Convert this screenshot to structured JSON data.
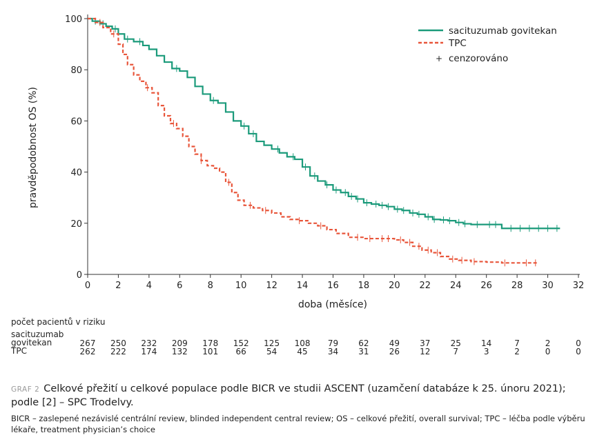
{
  "chart_data": {
    "type": "line",
    "title": "",
    "xlabel": "doba (měsíce)",
    "ylabel": "pravděpodobnost OS (%)",
    "xlim": [
      0,
      32
    ],
    "ylim": [
      0,
      100
    ],
    "xticks": [
      0,
      2,
      4,
      6,
      8,
      10,
      12,
      14,
      16,
      18,
      20,
      22,
      24,
      26,
      28,
      30,
      32
    ],
    "yticks": [
      0,
      20,
      40,
      60,
      80,
      100
    ],
    "grid": false,
    "legend": "top-right",
    "censored_label": "cenzorováno",
    "series": [
      {
        "name": "sacituzumab govitekan",
        "color": "#1a9a7a",
        "style": "solid",
        "x": [
          0,
          0.3,
          0.8,
          1.2,
          1.6,
          2.0,
          2.4,
          3.0,
          3.6,
          4.0,
          4.5,
          5.0,
          5.5,
          6.0,
          6.5,
          7.0,
          7.5,
          8.0,
          8.5,
          9.0,
          9.5,
          10.0,
          10.5,
          11.0,
          11.5,
          12.0,
          12.5,
          13.0,
          13.5,
          14.0,
          14.5,
          15.0,
          15.5,
          16.0,
          16.5,
          17.0,
          17.5,
          18.0,
          18.5,
          19.0,
          19.5,
          20.0,
          20.5,
          21.0,
          21.5,
          22.0,
          22.5,
          23.0,
          23.5,
          24.0,
          24.5,
          25.0,
          26.0,
          27.0,
          28.0,
          29.0,
          30.0,
          30.8
        ],
        "y": [
          100,
          99,
          98,
          97,
          96,
          94,
          92,
          91,
          89.5,
          88,
          85.5,
          83,
          80.5,
          79.5,
          77,
          73.5,
          70.5,
          68,
          67,
          63.5,
          60,
          58,
          55,
          52,
          50.5,
          49,
          47.5,
          46,
          45,
          42,
          38.5,
          36.5,
          35,
          33,
          32,
          30.5,
          29.5,
          28,
          27.5,
          27,
          26.5,
          25.5,
          25,
          24,
          23.5,
          22.5,
          21.5,
          21.3,
          21,
          20.3,
          19.8,
          19.5,
          19.5,
          18,
          18,
          18,
          18,
          18
        ],
        "censored_x": [
          0.5,
          1.0,
          1.8,
          2.6,
          3.4,
          5.8,
          8.2,
          10.2,
          10.8,
          12.4,
          13.4,
          14.2,
          14.8,
          15.6,
          16.2,
          16.8,
          17.2,
          17.6,
          18.2,
          18.8,
          19.2,
          19.6,
          20.2,
          20.6,
          21.2,
          21.6,
          22.2,
          22.6,
          23.2,
          23.6,
          24.2,
          24.6,
          25.4,
          26.2,
          26.6,
          27.6,
          28.2,
          28.8,
          29.4,
          30.0,
          30.6
        ]
      },
      {
        "name": "TPC",
        "color": "#e8553a",
        "style": "dashed",
        "x": [
          0,
          0.5,
          1.0,
          1.5,
          2.0,
          2.3,
          2.6,
          3.0,
          3.4,
          3.8,
          4.2,
          4.6,
          5.0,
          5.4,
          5.8,
          6.2,
          6.6,
          7.0,
          7.4,
          7.8,
          8.2,
          8.6,
          9.0,
          9.4,
          9.8,
          10.2,
          10.8,
          11.4,
          12.0,
          12.6,
          13.2,
          13.8,
          14.4,
          15.0,
          15.6,
          16.2,
          17.0,
          18.0,
          19.0,
          20.0,
          20.6,
          21.2,
          21.8,
          22.4,
          23.0,
          23.6,
          24.2,
          25.0,
          26.0,
          27.0,
          28.0,
          29.0,
          29.4
        ],
        "y": [
          100,
          98.5,
          96.5,
          94,
          90,
          86,
          82,
          78,
          75.5,
          73,
          71,
          66,
          62,
          59,
          57,
          54,
          50,
          47,
          44.5,
          42.5,
          41.5,
          40,
          36,
          32,
          29,
          27,
          26,
          25,
          24,
          22.5,
          21.5,
          21,
          20,
          19,
          17.5,
          16,
          14.5,
          14,
          14,
          13.5,
          12.5,
          11,
          9.5,
          8.5,
          7,
          6,
          5.5,
          5,
          4.8,
          4.5,
          4.5,
          4.5,
          4.5
        ],
        "censored_x": [
          0.8,
          1.7,
          3.9,
          5.6,
          7.4,
          9.2,
          10.6,
          11.6,
          13.8,
          15.2,
          17.6,
          18.4,
          19.2,
          19.6,
          20.4,
          21.0,
          21.6,
          22.2,
          22.8,
          23.8,
          24.4,
          25.2,
          27.2,
          28.6,
          29.2
        ]
      }
    ]
  },
  "risk_table": {
    "title": "počet pacientů v riziku",
    "times": [
      0,
      2,
      4,
      6,
      8,
      10,
      12,
      14,
      16,
      18,
      20,
      22,
      24,
      26,
      28,
      30,
      32
    ],
    "rows": [
      {
        "label_line1": "sacituzumab",
        "label_line2": "govitekan",
        "values": [
          "267",
          "250",
          "232",
          "209",
          "178",
          "152",
          "125",
          "108",
          "79",
          "62",
          "49",
          "37",
          "25",
          "14",
          "7",
          "2",
          "0"
        ]
      },
      {
        "label_line1": "TPC",
        "label_line2": "",
        "values": [
          "262",
          "222",
          "174",
          "132",
          "101",
          "66",
          "54",
          "45",
          "34",
          "31",
          "26",
          "12",
          "7",
          "3",
          "2",
          "0",
          "0"
        ]
      }
    ]
  },
  "caption": {
    "tag": "GRAF 2",
    "text": "Celkové přežití u celkové populace podle BICR ve studii ASCENT (uzamčení databáze k 25. únoru 2021); podle [2] – SPC Trodelvy."
  },
  "footnote": "BICR – zaslepené nezávislé centrální review, blinded independent central review; OS – celkové přežití, overall survival; TPC – léčba podle výběru lékaře, treatment physician’s choice"
}
